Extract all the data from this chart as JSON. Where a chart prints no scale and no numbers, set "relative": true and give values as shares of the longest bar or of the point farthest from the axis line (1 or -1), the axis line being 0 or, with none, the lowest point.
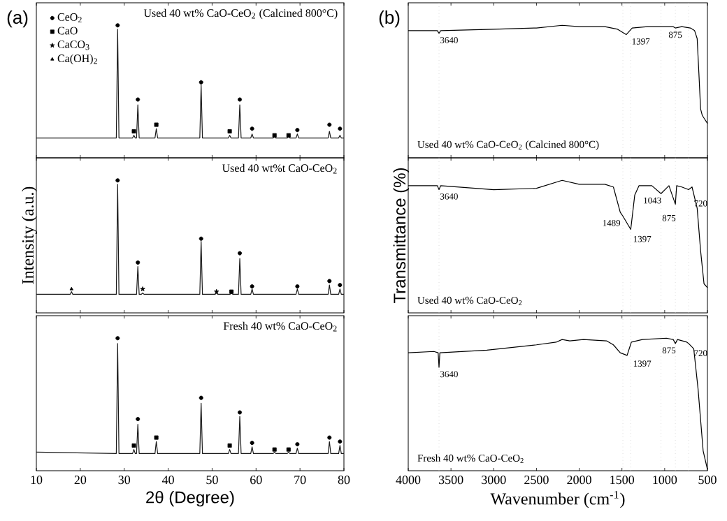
{
  "chart_data": [
    {
      "type": "line",
      "relative": true,
      "title": "(a)",
      "annotations": [
        "Used 40 wt% CaO-CeO$_{2}$ (Calcined 800°C)"
      ],
      "xlim": [
        10,
        80
      ],
      "xticks": [
        10,
        20,
        30,
        40,
        50,
        60,
        70,
        80
      ],
      "tick_labels": false,
      "legend": "top left",
      "series": [
        {
          "color": "#1a1a1a",
          "x": [
            10,
            28.2,
            28.5,
            28.8,
            31.9,
            32.2,
            32.5,
            32.8,
            33.1,
            33.4,
            37.0,
            37.3,
            37.6,
            47.2,
            47.5,
            47.8,
            53.7,
            54.0,
            54.3,
            56.0,
            56.3,
            56.6,
            58.8,
            59.1,
            59.4,
            63.9,
            64.2,
            64.5,
            67.1,
            67.4,
            67.7,
            69.1,
            69.4,
            69.7,
            76.4,
            76.7,
            77.0,
            78.8,
            79.1,
            79.4,
            80
          ],
          "values": [
            0.15,
            0.15,
            0.97,
            0.15,
            0.15,
            0.17,
            0.15,
            0.15,
            0.4,
            0.15,
            0.15,
            0.22,
            0.15,
            0.15,
            0.55,
            0.15,
            0.15,
            0.17,
            0.15,
            0.15,
            0.4,
            0.15,
            0.15,
            0.18,
            0.15,
            0.15,
            0.16,
            0.15,
            0.15,
            0.16,
            0.15,
            0.15,
            0.18,
            0.15,
            0.15,
            0.2,
            0.15,
            0.15,
            0.17,
            0.15,
            0.15
          ]
        },
        {
          "type": "scatter",
          "name": "CeO$_{2}$",
          "marker": "circle",
          "color": "#000000",
          "x": [
            28.5,
            33.1,
            47.5,
            56.3,
            59.1,
            69.4,
            76.7,
            79.1
          ],
          "values": [
            1.0,
            0.44,
            0.57,
            0.44,
            0.22,
            0.21,
            0.25,
            0.22
          ]
        },
        {
          "type": "scatter",
          "name": "CaO",
          "marker": "square",
          "color": "#000000",
          "x": [
            32.2,
            37.3,
            54.0,
            64.2,
            67.4
          ],
          "values": [
            0.2,
            0.25,
            0.2,
            0.17,
            0.17
          ]
        },
        {
          "type": "scatter",
          "name": "CaCO$_{3}$",
          "marker": "star",
          "color": "#000000"
        },
        {
          "type": "scatter",
          "name": "Ca(OH)$_{2}$",
          "marker": "triangle",
          "color": "#000000"
        }
      ]
    },
    {
      "type": "line",
      "relative": true,
      "ylabel": "Intensity (a.u.)",
      "annotations": [
        "Used 40 wt%t CaO-CeO$_{2}$"
      ],
      "xlim": [
        10,
        80
      ],
      "xticks": [
        10,
        20,
        30,
        40,
        50,
        60,
        70,
        80
      ],
      "tick_labels": false,
      "series": [
        {
          "color": "#1a1a1a",
          "x": [
            10,
            17.7,
            18.0,
            18.3,
            28.2,
            28.5,
            28.8,
            32.8,
            33.1,
            33.4,
            33.9,
            34.2,
            34.5,
            47.2,
            47.5,
            47.8,
            50.7,
            51.0,
            51.3,
            54.1,
            54.4,
            54.7,
            56.0,
            56.3,
            56.6,
            58.8,
            59.1,
            59.4,
            69.1,
            69.4,
            69.7,
            76.4,
            76.7,
            77.0,
            78.8,
            79.1,
            79.4,
            80
          ],
          "values": [
            0.14,
            0.14,
            0.16,
            0.14,
            0.14,
            0.97,
            0.14,
            0.14,
            0.35,
            0.14,
            0.14,
            0.15,
            0.14,
            0.14,
            0.54,
            0.14,
            0.14,
            0.15,
            0.14,
            0.14,
            0.15,
            0.14,
            0.14,
            0.41,
            0.14,
            0.14,
            0.18,
            0.14,
            0.14,
            0.18,
            0.14,
            0.14,
            0.21,
            0.14,
            0.14,
            0.18,
            0.14,
            0.14
          ]
        },
        {
          "type": "scatter",
          "marker": "circle",
          "color": "#000000",
          "x": [
            28.5,
            33.1,
            47.5,
            56.3,
            59.1,
            69.4,
            76.7,
            79.1
          ],
          "values": [
            1.0,
            0.38,
            0.56,
            0.45,
            0.2,
            0.2,
            0.24,
            0.21
          ]
        },
        {
          "type": "scatter",
          "marker": "square",
          "color": "#000000",
          "x": [
            54.4
          ],
          "values": [
            0.16
          ]
        },
        {
          "type": "scatter",
          "marker": "star",
          "color": "#000000",
          "x": [
            34.2,
            51.0
          ],
          "values": [
            0.18,
            0.16
          ]
        },
        {
          "type": "scatter",
          "marker": "triangle",
          "color": "#000000",
          "x": [
            18.0
          ],
          "values": [
            0.18
          ]
        }
      ]
    },
    {
      "type": "line",
      "relative": true,
      "xlabel": "2θ (Degree)",
      "annotations": [
        "Fresh 40 wt% CaO-CeO$_{2}$"
      ],
      "xlim": [
        10,
        80
      ],
      "xticks": [
        10,
        20,
        30,
        40,
        50,
        60,
        70,
        80
      ],
      "tick_labels": "x",
      "series": [
        {
          "color": "#1a1a1a",
          "x": [
            10,
            28.2,
            28.5,
            28.8,
            31.9,
            32.2,
            32.5,
            32.8,
            33.1,
            33.4,
            37.0,
            37.3,
            37.6,
            47.2,
            47.5,
            47.8,
            53.7,
            54.0,
            54.3,
            56.0,
            56.3,
            56.6,
            58.8,
            59.1,
            59.4,
            63.9,
            64.2,
            64.5,
            67.1,
            67.4,
            67.7,
            69.1,
            69.4,
            69.7,
            76.4,
            76.7,
            77.0,
            78.8,
            79.1,
            79.4,
            80
          ],
          "values": [
            0.14,
            0.13,
            0.96,
            0.13,
            0.13,
            0.16,
            0.13,
            0.13,
            0.35,
            0.13,
            0.13,
            0.22,
            0.13,
            0.13,
            0.51,
            0.13,
            0.13,
            0.16,
            0.13,
            0.13,
            0.41,
            0.13,
            0.13,
            0.18,
            0.13,
            0.13,
            0.14,
            0.13,
            0.13,
            0.14,
            0.13,
            0.13,
            0.17,
            0.13,
            0.13,
            0.22,
            0.13,
            0.13,
            0.19,
            0.13,
            0.13
          ]
        },
        {
          "type": "scatter",
          "marker": "circle",
          "color": "#000000",
          "x": [
            28.5,
            33.1,
            47.5,
            56.3,
            59.1,
            69.4,
            76.7,
            79.1
          ],
          "values": [
            1.0,
            0.39,
            0.55,
            0.44,
            0.21,
            0.2,
            0.25,
            0.22
          ]
        },
        {
          "type": "scatter",
          "marker": "square",
          "color": "#000000",
          "x": [
            32.2,
            37.3,
            54.0,
            64.2,
            67.4
          ],
          "values": [
            0.19,
            0.25,
            0.19,
            0.16,
            0.16
          ]
        }
      ]
    },
    {
      "type": "line",
      "relative": true,
      "title": "(b)",
      "xlim": [
        4000,
        500
      ],
      "xticks": [
        4000,
        3500,
        3000,
        2500,
        2000,
        1500,
        1000,
        500
      ],
      "tick_labels": false,
      "annotations": [
        "Used 40 wt% CaO-CeO$_{2}$ (Calcined 800°C)",
        {
          "text": "3640",
          "x": 3640,
          "y": 0.94
        },
        {
          "text": "1397",
          "x": 1397,
          "y": 0.93
        },
        {
          "text": "875",
          "x": 875,
          "y": 0.98
        }
      ],
      "ref_lines": [
        {
          "axis": "x",
          "value": 3640,
          "color": "#c8c8c8",
          "line_style": "dotted"
        },
        {
          "axis": "x",
          "value": 1489,
          "color": "#c8c8c8",
          "line_style": "dotted"
        },
        {
          "axis": "x",
          "value": 1397,
          "color": "#c8c8c8",
          "line_style": "dotted"
        },
        {
          "axis": "x",
          "value": 1043,
          "color": "#c8c8c8",
          "line_style": "dotted"
        },
        {
          "axis": "x",
          "value": 875,
          "color": "#c8c8c8",
          "line_style": "dotted"
        },
        {
          "axis": "x",
          "value": 720,
          "color": "#c8c8c8",
          "line_style": "dotted"
        }
      ],
      "series": [
        {
          "color": "#000000",
          "x": [
            4000,
            3660,
            3640,
            3620,
            3000,
            2500,
            2200,
            2000,
            1700,
            1550,
            1450,
            1380,
            1200,
            900,
            875,
            800,
            700,
            650,
            620,
            600,
            580,
            560,
            530,
            500
          ],
          "values": [
            0.96,
            0.96,
            0.94,
            0.96,
            0.97,
            0.98,
            1,
            0.99,
            0.99,
            0.97,
            0.93,
            0.98,
            0.99,
            0.99,
            0.98,
            0.99,
            0.98,
            0.96,
            0.9,
            0.64,
            0.37,
            0.32,
            0.29,
            0.26
          ]
        }
      ]
    },
    {
      "type": "line",
      "relative": true,
      "ylabel": "Transmittance (%)",
      "xlim": [
        4000,
        500
      ],
      "xticks": [
        4000,
        3500,
        3000,
        2500,
        2000,
        1500,
        1000,
        500
      ],
      "tick_labels": false,
      "annotations": [
        "Used 40 wt% CaO-CeO$_{2}$",
        {
          "text": "3640",
          "x": 3640,
          "y": 0.93
        },
        {
          "text": "1489",
          "x": 1489,
          "y": 0.73
        },
        {
          "text": "1397",
          "x": 1397,
          "y": 0.63
        },
        {
          "text": "1043",
          "x": 1043,
          "y": 0.9
        },
        {
          "text": "875",
          "x": 875,
          "y": 0.82
        },
        {
          "text": "720",
          "x": 720,
          "y": 0.93
        }
      ],
      "ref_lines": [
        {
          "axis": "x",
          "value": 3640,
          "color": "#c8c8c8",
          "line_style": "dotted"
        },
        {
          "axis": "x",
          "value": 1489,
          "color": "#c8c8c8",
          "line_style": "dotted"
        },
        {
          "axis": "x",
          "value": 1397,
          "color": "#c8c8c8",
          "line_style": "dotted"
        },
        {
          "axis": "x",
          "value": 1043,
          "color": "#c8c8c8",
          "line_style": "dotted"
        },
        {
          "axis": "x",
          "value": 875,
          "color": "#c8c8c8",
          "line_style": "dotted"
        },
        {
          "axis": "x",
          "value": 720,
          "color": "#c8c8c8",
          "line_style": "dotted"
        }
      ],
      "series": [
        {
          "color": "#000000",
          "x": [
            4000,
            3660,
            3640,
            3620,
            3000,
            2500,
            2200,
            2000,
            1700,
            1600,
            1520,
            1489,
            1397,
            1350,
            1300,
            1150,
            1043,
            950,
            875,
            860,
            800,
            720,
            680,
            620,
            580,
            540,
            500
          ],
          "values": [
            0.96,
            0.96,
            0.93,
            0.96,
            0.93,
            0.94,
            1,
            0.97,
            0.97,
            0.95,
            0.76,
            0.73,
            0.63,
            0.89,
            0.96,
            0.96,
            0.9,
            0.96,
            0.82,
            0.96,
            0.95,
            0.93,
            0.95,
            0.79,
            0.47,
            0.22,
            0.19
          ]
        }
      ]
    },
    {
      "type": "line",
      "relative": true,
      "xlabel": "Wavenumber (cm$^{-1}$)",
      "xlim": [
        4000,
        500
      ],
      "xticks": [
        4000,
        3500,
        3000,
        2500,
        2000,
        1500,
        1000,
        500
      ],
      "tick_labels": "x",
      "annotations": [
        "Fresh 40 wt% CaO-CeO$_{2}$",
        {
          "text": "3640",
          "x": 3640,
          "y": 0.78
        },
        {
          "text": "1397",
          "x": 1397,
          "y": 0.87
        },
        {
          "text": "875",
          "x": 875,
          "y": 0.96
        },
        {
          "text": "720",
          "x": 720,
          "y": 0.96
        }
      ],
      "ref_lines": [
        {
          "axis": "x",
          "value": 3640,
          "color": "#c8c8c8",
          "line_style": "dotted"
        },
        {
          "axis": "x",
          "value": 1489,
          "color": "#c8c8c8",
          "line_style": "dotted"
        },
        {
          "axis": "x",
          "value": 1397,
          "color": "#c8c8c8",
          "line_style": "dotted"
        },
        {
          "axis": "x",
          "value": 1043,
          "color": "#c8c8c8",
          "line_style": "dotted"
        },
        {
          "axis": "x",
          "value": 875,
          "color": "#c8c8c8",
          "line_style": "dotted"
        },
        {
          "axis": "x",
          "value": 720,
          "color": "#c8c8c8",
          "line_style": "dotted"
        }
      ],
      "series": [
        {
          "color": "#000000",
          "x": [
            4000,
            3700,
            3650,
            3640,
            3630,
            3080,
            2500,
            2270,
            2200,
            2110,
            1950,
            1680,
            1600,
            1520,
            1440,
            1390,
            1260,
            980,
            900,
            875,
            850,
            740,
            720,
            660,
            610,
            550,
            500
          ],
          "values": [
            0.89,
            0.9,
            0.89,
            0.78,
            0.89,
            0.91,
            0.95,
            0.97,
            0.99,
            0.98,
            0.99,
            0.98,
            0.95,
            0.89,
            0.87,
            0.97,
            0.99,
            1,
            0.99,
            0.96,
            0.99,
            0.97,
            0.96,
            0.92,
            0.62,
            0.15,
            0.01
          ]
        }
      ]
    }
  ]
}
